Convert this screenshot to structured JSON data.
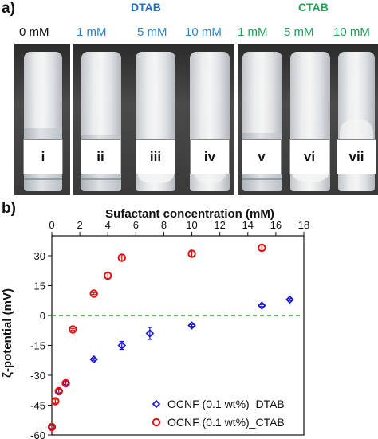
{
  "panel_a": {
    "label": "a)",
    "groups": [
      {
        "title": "DTAB",
        "color": "#1f6fc4"
      },
      {
        "title": "CTAB",
        "color": "#22a05a"
      }
    ],
    "concentrations": [
      {
        "text": "0 mM",
        "color": "#111111"
      },
      {
        "text": "1 mM",
        "color": "#2a86c9"
      },
      {
        "text": "5 mM",
        "color": "#2a86c9"
      },
      {
        "text": "10 mM",
        "color": "#2a86c9"
      },
      {
        "text": "1 mM",
        "color": "#22a05a"
      },
      {
        "text": "5 mM",
        "color": "#22a05a"
      },
      {
        "text": "10 mM",
        "color": "#22a05a"
      }
    ],
    "vial_labels": [
      "i",
      "ii",
      "iii",
      "iv",
      "v",
      "vi",
      "vii"
    ]
  },
  "panel_b": {
    "label": "b)"
  },
  "chart_data": {
    "type": "scatter",
    "xlabel": "Sufactant concentration (mM)",
    "ylabel": "ζ-potential (mV)",
    "xlim": [
      0,
      18
    ],
    "ylim": [
      -60,
      40
    ],
    "xticks": [
      0,
      2,
      4,
      6,
      8,
      10,
      12,
      14,
      16,
      18
    ],
    "yticks": [
      30,
      15,
      0,
      -15,
      -30,
      -45,
      -60
    ],
    "x_axis_position": "top",
    "reference_line": {
      "y": 0,
      "color": "#22aa22",
      "style": "dashed"
    },
    "legend_position": "bottom-right",
    "series": [
      {
        "name": "OCNF (0.1 wt%)_DTAB",
        "marker": "diamond",
        "color": "#1a1acc",
        "points": [
          {
            "x": 0,
            "y": -56,
            "err": 1
          },
          {
            "x": 0.5,
            "y": -38,
            "err": 1
          },
          {
            "x": 1,
            "y": -34,
            "err": 1
          },
          {
            "x": 3,
            "y": -22,
            "err": 0.5
          },
          {
            "x": 5,
            "y": -15,
            "err": 2
          },
          {
            "x": 7,
            "y": -9,
            "err": 3
          },
          {
            "x": 10,
            "y": -5,
            "err": 0.5
          },
          {
            "x": 15,
            "y": 5,
            "err": 0.5
          },
          {
            "x": 17,
            "y": 8,
            "err": 0.5
          }
        ]
      },
      {
        "name": "OCNF (0.1 wt%)_CTAB",
        "marker": "circle",
        "color": "#dd1111",
        "points": [
          {
            "x": 0,
            "y": -56,
            "err": 1
          },
          {
            "x": 0.25,
            "y": -43,
            "err": 1
          },
          {
            "x": 0.5,
            "y": -38,
            "err": 1
          },
          {
            "x": 1,
            "y": -34,
            "err": 1
          },
          {
            "x": 1.5,
            "y": -7,
            "err": 0.5
          },
          {
            "x": 3,
            "y": 11,
            "err": 0.5
          },
          {
            "x": 4,
            "y": 20,
            "err": 1.5
          },
          {
            "x": 5,
            "y": 29,
            "err": 1.5
          },
          {
            "x": 10,
            "y": 31,
            "err": 1.5
          },
          {
            "x": 15,
            "y": 34,
            "err": 1.5
          }
        ]
      }
    ]
  }
}
